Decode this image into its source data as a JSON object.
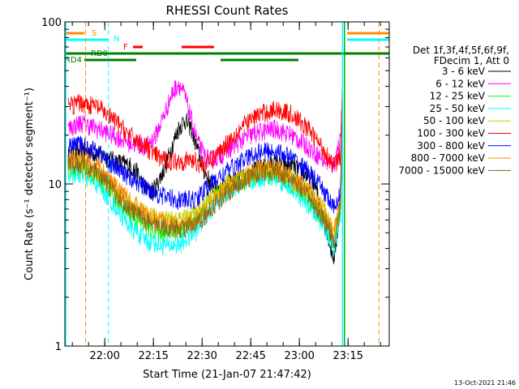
{
  "chart_data": {
    "type": "line",
    "title": "RHESSI Count Rates",
    "xlabel": "Start Time (21-Jan-07 21:47:42)",
    "ylabel": "Count Rate (s⁻¹ detector segment⁻¹)",
    "yscale": "log",
    "ylim": [
      1,
      100
    ],
    "xlim_minutes_from_start": [
      0,
      100
    ],
    "x_ticks": [
      "22:00",
      "22:15",
      "22:30",
      "22:45",
      "23:00",
      "23:15"
    ],
    "y_ticks": [
      "1",
      "10",
      "100"
    ],
    "timestamp": "13-Oct-2021 21:46",
    "legend_header": [
      "Det 1f,3f,4f,5f,6f,9f,",
      "FDecim 1, Att 0"
    ],
    "series": [
      {
        "name": "3 - 6 keV",
        "color": "#000000",
        "values": [
          [
            1,
            15
          ],
          [
            5,
            16
          ],
          [
            10,
            15.5
          ],
          [
            15,
            14
          ],
          [
            20,
            13
          ],
          [
            22,
            12
          ],
          [
            24,
            10
          ],
          [
            26,
            9
          ],
          [
            28,
            9.5
          ],
          [
            31,
            13
          ],
          [
            33,
            17
          ],
          [
            35,
            22
          ],
          [
            37,
            25
          ],
          [
            39,
            22
          ],
          [
            41,
            16
          ],
          [
            43,
            12
          ],
          [
            45,
            10
          ],
          [
            48,
            9.5
          ],
          [
            55,
            11
          ],
          [
            60,
            12.5
          ],
          [
            65,
            13.5
          ],
          [
            70,
            13
          ],
          [
            74,
            11.5
          ],
          [
            77,
            10
          ],
          [
            79,
            7
          ],
          [
            81,
            5
          ],
          [
            82,
            4
          ],
          [
            83,
            3.5
          ],
          [
            84,
            5
          ],
          [
            85,
            9
          ],
          [
            85.7,
            45
          ]
        ]
      },
      {
        "name": "6 - 12 keV",
        "color": "#ff00ff",
        "values": [
          [
            1,
            22
          ],
          [
            5,
            24
          ],
          [
            10,
            22
          ],
          [
            15,
            20
          ],
          [
            20,
            18
          ],
          [
            25,
            17
          ],
          [
            28,
            20
          ],
          [
            31,
            28
          ],
          [
            33,
            36
          ],
          [
            35,
            42
          ],
          [
            37,
            35
          ],
          [
            39,
            25
          ],
          [
            41,
            18
          ],
          [
            43,
            15
          ],
          [
            45,
            14
          ],
          [
            50,
            16
          ],
          [
            55,
            19
          ],
          [
            60,
            21
          ],
          [
            65,
            22
          ],
          [
            70,
            20
          ],
          [
            75,
            17
          ],
          [
            80,
            14
          ],
          [
            83,
            13
          ],
          [
            85,
            20
          ],
          [
            85.7,
            40
          ]
        ]
      },
      {
        "name": "12 - 25 keV",
        "color": "#00ff00",
        "values": [
          [
            1,
            12
          ],
          [
            5,
            12.5
          ],
          [
            10,
            11
          ],
          [
            15,
            8.5
          ],
          [
            20,
            6.5
          ],
          [
            25,
            5.5
          ],
          [
            30,
            5
          ],
          [
            35,
            5.2
          ],
          [
            40,
            6
          ],
          [
            45,
            8
          ],
          [
            50,
            9.5
          ],
          [
            55,
            10.5
          ],
          [
            60,
            11.5
          ],
          [
            65,
            11.5
          ],
          [
            70,
            10
          ],
          [
            75,
            8
          ],
          [
            80,
            6
          ],
          [
            83,
            4.5
          ],
          [
            85,
            7
          ],
          [
            85.7,
            30
          ]
        ]
      },
      {
        "name": "25 - 50 keV",
        "color": "#00ffff",
        "values": [
          [
            1,
            11.5
          ],
          [
            5,
            11.5
          ],
          [
            10,
            10
          ],
          [
            15,
            7.5
          ],
          [
            20,
            5.5
          ],
          [
            25,
            4.5
          ],
          [
            30,
            4.2
          ],
          [
            35,
            4.2
          ],
          [
            40,
            5
          ],
          [
            45,
            7
          ],
          [
            50,
            9
          ],
          [
            55,
            10
          ],
          [
            60,
            11
          ],
          [
            65,
            11
          ],
          [
            70,
            9.5
          ],
          [
            75,
            7.5
          ],
          [
            80,
            5.5
          ],
          [
            83,
            4
          ],
          [
            85,
            6.5
          ],
          [
            85.7,
            30
          ]
        ]
      },
      {
        "name": "50 - 100 keV",
        "color": "#cccc00",
        "values": [
          [
            1,
            13
          ],
          [
            5,
            13
          ],
          [
            10,
            12
          ],
          [
            15,
            9.5
          ],
          [
            20,
            7.5
          ],
          [
            25,
            6.5
          ],
          [
            30,
            6
          ],
          [
            35,
            6
          ],
          [
            40,
            6.5
          ],
          [
            45,
            8.5
          ],
          [
            50,
            10
          ],
          [
            55,
            11
          ],
          [
            60,
            12
          ],
          [
            65,
            12
          ],
          [
            70,
            11
          ],
          [
            75,
            9
          ],
          [
            80,
            7
          ],
          [
            83,
            5
          ],
          [
            85,
            8
          ],
          [
            85.7,
            35
          ]
        ]
      },
      {
        "name": "100 - 300 keV",
        "color": "#ff0000",
        "values": [
          [
            1,
            30
          ],
          [
            5,
            32
          ],
          [
            10,
            30
          ],
          [
            15,
            25
          ],
          [
            20,
            20
          ],
          [
            25,
            17
          ],
          [
            28,
            15
          ],
          [
            31,
            14
          ],
          [
            35,
            14
          ],
          [
            40,
            14
          ],
          [
            43,
            13
          ],
          [
            45,
            14
          ],
          [
            50,
            18
          ],
          [
            55,
            23
          ],
          [
            60,
            27
          ],
          [
            65,
            29
          ],
          [
            70,
            27
          ],
          [
            75,
            22
          ],
          [
            80,
            16
          ],
          [
            83,
            13
          ],
          [
            85,
            15
          ],
          [
            85.7,
            50
          ]
        ]
      },
      {
        "name": "300 - 800 keV",
        "color": "#0000ff",
        "values": [
          [
            1,
            17
          ],
          [
            5,
            17.5
          ],
          [
            10,
            16
          ],
          [
            15,
            13
          ],
          [
            20,
            11
          ],
          [
            25,
            9.5
          ],
          [
            30,
            8.5
          ],
          [
            35,
            8
          ],
          [
            40,
            8
          ],
          [
            45,
            10
          ],
          [
            50,
            12
          ],
          [
            55,
            14
          ],
          [
            60,
            16
          ],
          [
            65,
            16
          ],
          [
            70,
            14.5
          ],
          [
            75,
            12
          ],
          [
            80,
            9
          ],
          [
            83,
            7
          ],
          [
            85,
            9
          ],
          [
            85.7,
            40
          ]
        ]
      },
      {
        "name": "800 - 7000 keV",
        "color": "#ff8c00",
        "values": [
          [
            1,
            14
          ],
          [
            5,
            14.5
          ],
          [
            10,
            13
          ],
          [
            15,
            10
          ],
          [
            20,
            8
          ],
          [
            25,
            6.5
          ],
          [
            30,
            6
          ],
          [
            35,
            5.5
          ],
          [
            40,
            5.8
          ],
          [
            45,
            7.5
          ],
          [
            50,
            9.5
          ],
          [
            55,
            11
          ],
          [
            60,
            12.5
          ],
          [
            65,
            12.5
          ],
          [
            70,
            11
          ],
          [
            75,
            9
          ],
          [
            80,
            6.5
          ],
          [
            83,
            5
          ],
          [
            85,
            8
          ],
          [
            85.7,
            40
          ]
        ]
      },
      {
        "name": "7000 - 15000 keV",
        "color": "#8b6914",
        "values": [
          [
            1,
            13
          ],
          [
            5,
            13.5
          ],
          [
            10,
            12
          ],
          [
            15,
            9
          ],
          [
            20,
            7
          ],
          [
            25,
            6
          ],
          [
            30,
            5.5
          ],
          [
            35,
            5.3
          ],
          [
            40,
            5.5
          ],
          [
            45,
            7
          ],
          [
            50,
            9
          ],
          [
            55,
            10.5
          ],
          [
            60,
            12
          ],
          [
            65,
            12
          ],
          [
            70,
            10.5
          ],
          [
            75,
            8.5
          ],
          [
            80,
            6
          ],
          [
            83,
            4.5
          ],
          [
            85,
            7
          ],
          [
            85.7,
            35
          ]
        ]
      }
    ],
    "flag_bars": [
      {
        "label": "S",
        "color": "#ff8c00",
        "segments": [
          [
            0,
            6
          ],
          [
            87,
            100
          ]
        ]
      },
      {
        "label": "N",
        "color": "#00ffff",
        "segments": [
          [
            0,
            13.5
          ],
          [
            87,
            100
          ]
        ]
      },
      {
        "label": "F",
        "color": "#ff0000",
        "segments": [
          [
            21,
            24
          ],
          [
            36,
            46
          ]
        ]
      },
      {
        "label": "RD0",
        "color": "#008000",
        "segments": [
          [
            0,
            100
          ]
        ]
      },
      {
        "label": "RD4",
        "color": "#008000",
        "segments": [
          [
            6,
            22
          ],
          [
            48,
            72
          ]
        ]
      }
    ],
    "vertical_markers": [
      {
        "t": 6.4,
        "color": "#ff8c00"
      },
      {
        "t": 13.4,
        "color": "#00ffff"
      },
      {
        "t": 96.8,
        "color": "#ff8c00"
      }
    ],
    "vertical_solid_markers": [
      {
        "t": 85.6,
        "color": "#00ffff"
      },
      {
        "t": 86.2,
        "color": "#00aa00"
      }
    ]
  }
}
